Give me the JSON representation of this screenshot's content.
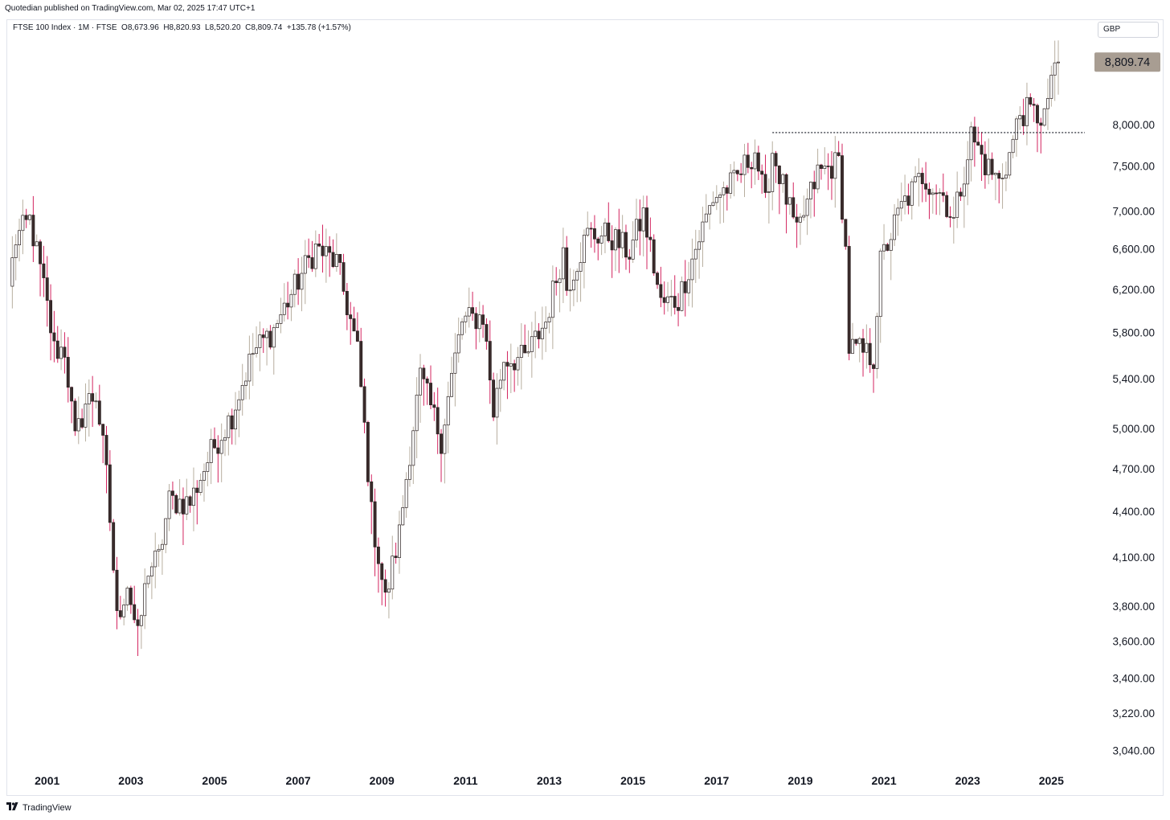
{
  "publisher_text": "Quotedian published on TradingView.com, Mar 02, 2025 17:47 UTC+1",
  "legend": {
    "symbol": "FTSE 100 Index · 1M · FTSE",
    "open": "O8,673.96",
    "high": "H8,820.93",
    "low": "L8,520.20",
    "close": "C8,809.74",
    "change": "+135.78 (+1.57%)"
  },
  "currency": "GBP",
  "footer": {
    "brand": "TradingView",
    "logo_icon": "tradingview-logo-icon"
  },
  "colors": {
    "up_body": "#ffffff",
    "down_body": "#3a2b2b",
    "candle_border": "#2a2020",
    "up_wick": "#b7ae9f",
    "down_wick": "#d3245f",
    "last_price_bg": "#a89d92",
    "dotted_line": "#131722"
  },
  "chart_data": {
    "type": "candlestick",
    "interval": "1M",
    "scale": "log",
    "ylim": [
      2960,
      9400
    ],
    "x_start": "2000-02",
    "x_end": "2025-03",
    "y_ticks": [
      "3,040.00",
      "3,220.00",
      "3,400.00",
      "3,600.00",
      "3,800.00",
      "4,100.00",
      "4,400.00",
      "4,700.00",
      "5,000.00",
      "5,400.00",
      "5,800.00",
      "6,200.00",
      "6,600.00",
      "7,000.00",
      "7,500.00",
      "8,000.00"
    ],
    "y_tick_values": [
      3040,
      3220,
      3400,
      3600,
      3800,
      4100,
      4400,
      4700,
      5000,
      5400,
      5800,
      6200,
      6600,
      7000,
      7500,
      8000
    ],
    "x_ticks": [
      "2001",
      "2003",
      "2005",
      "2007",
      "2009",
      "2011",
      "2013",
      "2015",
      "2017",
      "2019",
      "2021",
      "2023",
      "2025"
    ],
    "last_price": 8809.74,
    "last_price_label": "8,809.74",
    "resistance_level": 7900,
    "resistance_from": "2018-05",
    "anchors": [
      [
        "2000-02",
        6230
      ],
      [
        "2000-04",
        6700
      ],
      [
        "2000-08",
        6900
      ],
      [
        "2000-12",
        6220
      ],
      [
        "2001-03",
        5650
      ],
      [
        "2001-06",
        5650
      ],
      [
        "2001-09",
        4900
      ],
      [
        "2001-12",
        5200
      ],
      [
        "2002-03",
        5270
      ],
      [
        "2002-06",
        4650
      ],
      [
        "2002-09",
        3720
      ],
      [
        "2002-12",
        3940
      ],
      [
        "2003-03",
        3610
      ],
      [
        "2003-06",
        4030
      ],
      [
        "2003-09",
        4090
      ],
      [
        "2003-12",
        4470
      ],
      [
        "2004-06",
        4460
      ],
      [
        "2004-12",
        4820
      ],
      [
        "2005-06",
        5110
      ],
      [
        "2005-12",
        5620
      ],
      [
        "2006-06",
        5830
      ],
      [
        "2006-12",
        6220
      ],
      [
        "2007-06",
        6610
      ],
      [
        "2007-12",
        6460
      ],
      [
        "2008-06",
        5630
      ],
      [
        "2008-10",
        4380
      ],
      [
        "2009-02",
        3830
      ],
      [
        "2009-06",
        4250
      ],
      [
        "2009-12",
        5410
      ],
      [
        "2010-06",
        4920
      ],
      [
        "2010-12",
        5900
      ],
      [
        "2011-06",
        5950
      ],
      [
        "2011-09",
        5130
      ],
      [
        "2011-12",
        5570
      ],
      [
        "2012-06",
        5570
      ],
      [
        "2012-12",
        5900
      ],
      [
        "2013-05",
        6580
      ],
      [
        "2013-06",
        6220
      ],
      [
        "2013-12",
        6750
      ],
      [
        "2014-06",
        6740
      ],
      [
        "2014-12",
        6570
      ],
      [
        "2015-04",
        6960
      ],
      [
        "2015-09",
        6060
      ],
      [
        "2016-02",
        6100
      ],
      [
        "2016-06",
        6500
      ],
      [
        "2016-12",
        7140
      ],
      [
        "2017-06",
        7310
      ],
      [
        "2017-12",
        7690
      ],
      [
        "2018-03",
        7050
      ],
      [
        "2018-05",
        7680
      ],
      [
        "2018-12",
        6730
      ],
      [
        "2019-06",
        7420
      ],
      [
        "2019-12",
        7540
      ],
      [
        "2020-02",
        6580
      ],
      [
        "2020-03",
        5670
      ],
      [
        "2020-10",
        5580
      ],
      [
        "2020-12",
        6460
      ],
      [
        "2021-06",
        7040
      ],
      [
        "2021-12",
        7390
      ],
      [
        "2022-06",
        7170
      ],
      [
        "2022-09",
        6890
      ],
      [
        "2022-12",
        7450
      ],
      [
        "2023-02",
        7870
      ],
      [
        "2023-06",
        7530
      ],
      [
        "2023-10",
        7320
      ],
      [
        "2024-01",
        7630
      ],
      [
        "2024-04",
        8140
      ],
      [
        "2024-06",
        8160
      ],
      [
        "2024-10",
        8100
      ],
      [
        "2024-12",
        8170
      ],
      [
        "2025-01",
        8670
      ],
      [
        "2025-02",
        8810
      ]
    ]
  }
}
